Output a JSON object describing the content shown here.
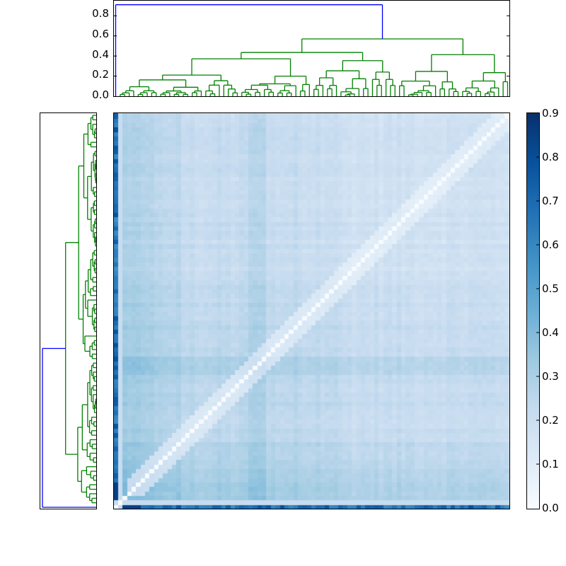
{
  "chart_data": {
    "type": "heatmap",
    "title": "",
    "description": "Clustered similarity/distance heatmap with hierarchical dendrograms on top and left, and a colorbar on the right",
    "matrix_size": 88,
    "colormap": "Blues",
    "color_range": [
      0.0,
      0.9
    ],
    "diagonal_value": 0.0,
    "top_dendrogram": {
      "ylim": [
        0.0,
        0.95
      ],
      "yticks": [
        "0.0",
        "0.2",
        "0.4",
        "0.6",
        "0.8"
      ],
      "root_height": 0.91,
      "root_color": "#0000ff",
      "cluster_color": "#008000",
      "main_merges": [
        0.91,
        0.57,
        0.47,
        0.39,
        0.33,
        0.28,
        0.22
      ]
    },
    "left_dendrogram": {
      "root_color": "#0000ff",
      "cluster_color": "#008000",
      "orientation": "left"
    },
    "colorbar": {
      "ticks": [
        "0.0",
        "0.1",
        "0.2",
        "0.3",
        "0.4",
        "0.5",
        "0.6",
        "0.7",
        "0.8",
        "0.9"
      ],
      "min": 0.0,
      "max": 0.9
    },
    "grid": false,
    "legend": "colorbar-right"
  },
  "top_axis": {
    "labels": [
      "0.8",
      "0.6",
      "0.4",
      "0.2",
      "0.0"
    ]
  },
  "colorbar_axis": {
    "labels": [
      "0.9",
      "0.8",
      "0.7",
      "0.6",
      "0.5",
      "0.4",
      "0.3",
      "0.2",
      "0.1",
      "0.0"
    ]
  },
  "colors": {
    "dendro_root": "#0000ff",
    "dendro_cluster": "#008000",
    "cmap_low": "#f7fbff",
    "cmap_high": "#08306b"
  }
}
